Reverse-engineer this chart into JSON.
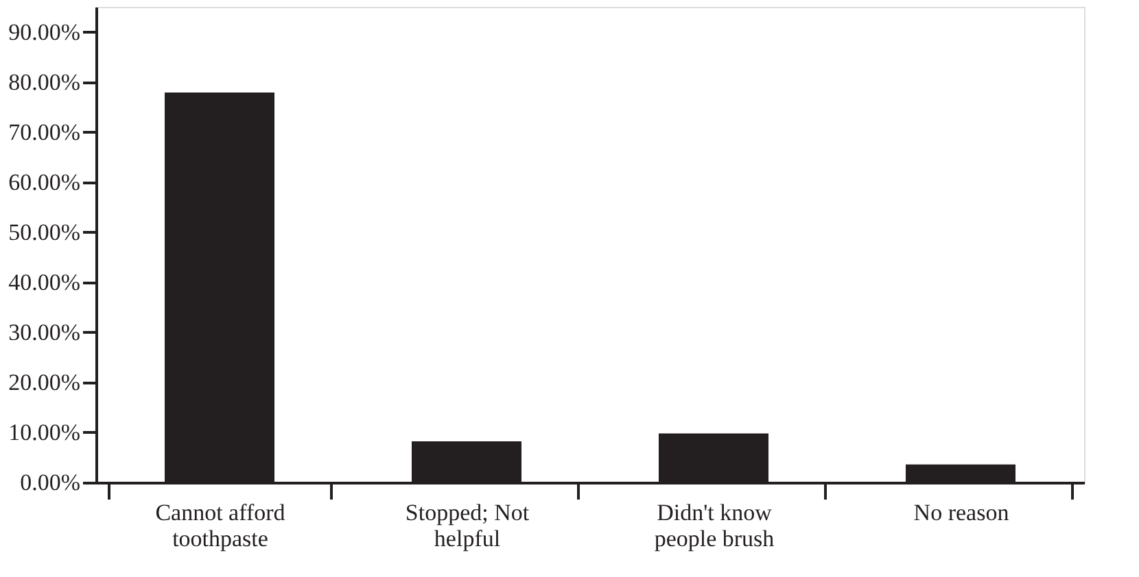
{
  "chart_data": {
    "type": "bar",
    "categories": [
      "Cannot afford toothpaste",
      "Stopped; Not helpful",
      "Didn't know people brush",
      "No reason"
    ],
    "values": [
      77.9,
      8.2,
      9.8,
      3.6
    ],
    "color": "#231f20",
    "ylim": [
      0,
      95
    ],
    "yticks": [
      {
        "value": 0,
        "label": "0.00%"
      },
      {
        "value": 10,
        "label": "10.00%"
      },
      {
        "value": 20,
        "label": "20.00%"
      },
      {
        "value": 30,
        "label": "30.00%"
      },
      {
        "value": 40,
        "label": "40.00%"
      },
      {
        "value": 50,
        "label": "50.00%"
      },
      {
        "value": 60,
        "label": "60.00%"
      },
      {
        "value": 70,
        "label": "70.00%"
      },
      {
        "value": 80,
        "label": "80.00%"
      },
      {
        "value": 90,
        "label": "90.00%"
      }
    ],
    "grid": false
  }
}
